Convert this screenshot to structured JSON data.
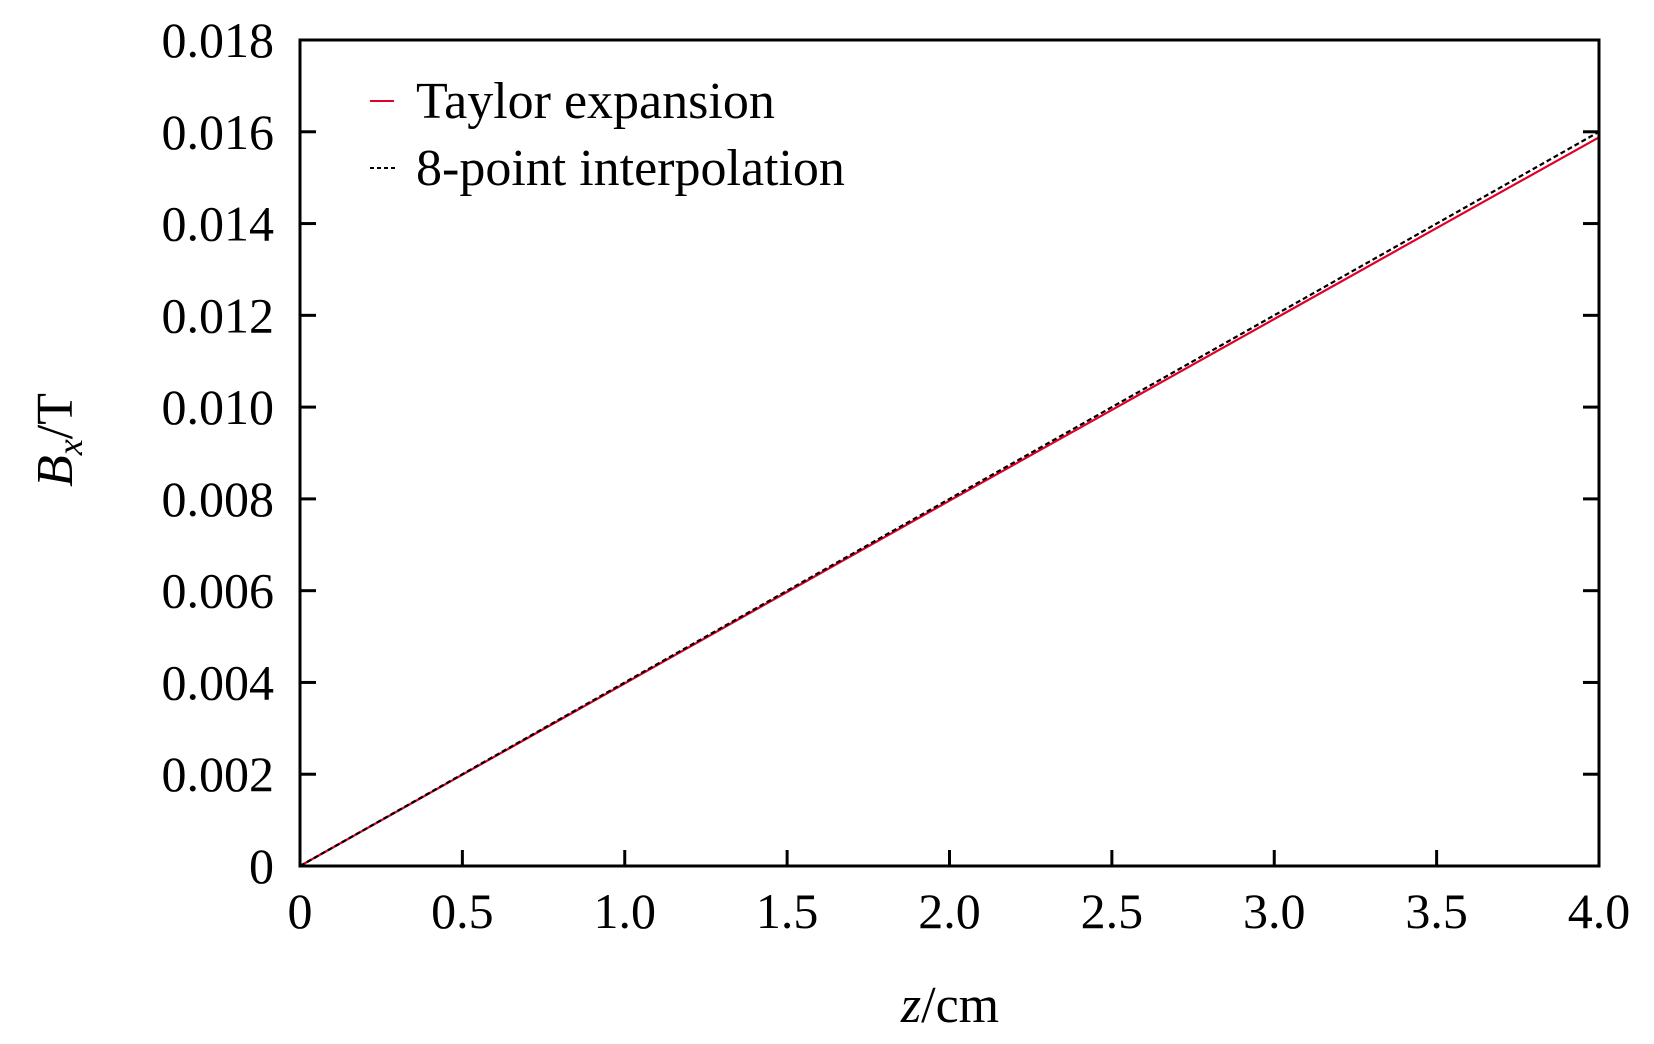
{
  "chart_data": {
    "type": "line",
    "xlabel_var": "z",
    "xlabel_unit": "/cm",
    "ylabel_var": "B",
    "ylabel_sub": "x",
    "ylabel_unit": "/T",
    "xlim": [
      0,
      4.0
    ],
    "ylim": [
      0,
      0.018
    ],
    "x_ticks": [
      "0",
      "0.5",
      "1.0",
      "1.5",
      "2.0",
      "2.5",
      "3.0",
      "3.5",
      "4.0"
    ],
    "y_ticks": [
      "0",
      "0.002",
      "0.004",
      "0.006",
      "0.008",
      "0.010",
      "0.012",
      "0.014",
      "0.016",
      "0.018"
    ],
    "grid": false,
    "legend_position": "top-left",
    "series": [
      {
        "name": "Taylor expansion",
        "color": "#e0002a",
        "style": "solid",
        "x": [
          0,
          0.5,
          1.0,
          1.5,
          2.0,
          2.5,
          3.0,
          3.5,
          4.0
        ],
        "y": [
          0,
          0.00199,
          0.00398,
          0.00597,
          0.00796,
          0.00994,
          0.01192,
          0.0139,
          0.01588
        ]
      },
      {
        "name": "8-point interpolation",
        "color": "#000000",
        "style": "dashed",
        "x": [
          0,
          0.5,
          1.0,
          1.5,
          2.0,
          2.5,
          3.0,
          3.5,
          4.0
        ],
        "y": [
          0,
          0.002,
          0.004,
          0.006,
          0.008,
          0.01,
          0.012,
          0.014,
          0.016
        ]
      }
    ]
  }
}
